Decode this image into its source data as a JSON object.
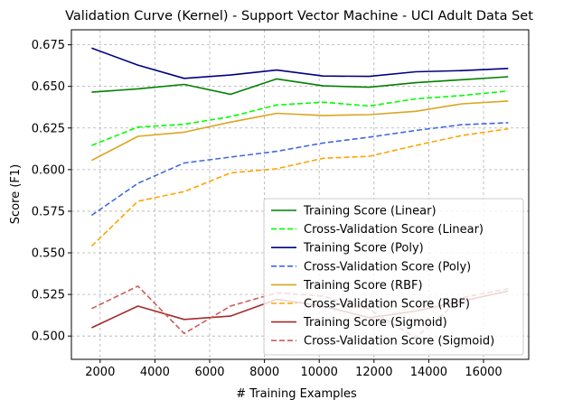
{
  "chart_data": {
    "type": "line",
    "title": "Validation Curve (Kernel) - Support Vector Machine - UCI Adult Data Set",
    "xlabel": "# Training Examples",
    "ylabel": "Score (F1)",
    "xlim": [
      950,
      17650
    ],
    "ylim": [
      0.486,
      0.684
    ],
    "grid": true,
    "legend_position": "lower-right",
    "x": [
      1690,
      3380,
      5070,
      6760,
      8450,
      10140,
      11830,
      13520,
      15210,
      16900
    ],
    "x_ticks": [
      2000,
      4000,
      6000,
      8000,
      10000,
      12000,
      14000,
      16000
    ],
    "x_tick_labels": [
      "2000",
      "4000",
      "6000",
      "8000",
      "10000",
      "12000",
      "14000",
      "16000"
    ],
    "y_ticks": [
      0.5,
      0.525,
      0.55,
      0.575,
      0.6,
      0.625,
      0.65,
      0.675
    ],
    "y_tick_labels": [
      "0.500",
      "0.525",
      "0.550",
      "0.575",
      "0.600",
      "0.625",
      "0.650",
      "0.675"
    ],
    "series": [
      {
        "name": "Training Score (Linear)",
        "color": "#008000",
        "dash": "solid",
        "values": [
          0.6465,
          0.6485,
          0.6512,
          0.6452,
          0.6545,
          0.6503,
          0.6495,
          0.6522,
          0.654,
          0.6558
        ]
      },
      {
        "name": "Cross-Validation Score (Linear)",
        "color": "#00ff00",
        "dash": "dashed",
        "values": [
          0.6145,
          0.6255,
          0.6272,
          0.6318,
          0.6388,
          0.6405,
          0.6382,
          0.6425,
          0.6445,
          0.6472
        ]
      },
      {
        "name": "Training Score (Poly)",
        "color": "#000080",
        "dash": "solid",
        "values": [
          0.673,
          0.6628,
          0.6548,
          0.6568,
          0.6598,
          0.6562,
          0.656,
          0.6588,
          0.6595,
          0.6608
        ]
      },
      {
        "name": "Cross-Validation Score (Poly)",
        "color": "#4169e1",
        "dash": "dashed",
        "values": [
          0.5725,
          0.5918,
          0.604,
          0.6075,
          0.611,
          0.616,
          0.6195,
          0.6235,
          0.627,
          0.6282
        ]
      },
      {
        "name": "Training Score (RBF)",
        "color": "#daa520",
        "dash": "solid",
        "values": [
          0.6055,
          0.62,
          0.6225,
          0.6285,
          0.6338,
          0.6325,
          0.633,
          0.635,
          0.6395,
          0.6412
        ]
      },
      {
        "name": "Cross-Validation Score (RBF)",
        "color": "#ffa500",
        "dash": "dashed",
        "values": [
          0.554,
          0.581,
          0.5868,
          0.598,
          0.6005,
          0.6068,
          0.608,
          0.6145,
          0.6205,
          0.6245
        ]
      },
      {
        "name": "Training Score (Sigmoid)",
        "color": "#a52a2a",
        "dash": "solid",
        "values": [
          0.505,
          0.518,
          0.51,
          0.512,
          0.522,
          0.518,
          0.511,
          0.515,
          0.521,
          0.527
        ]
      },
      {
        "name": "Cross-Validation Score (Sigmoid)",
        "color": "#cd5c5c",
        "dash": "dashed",
        "values": [
          0.5165,
          0.53,
          0.5015,
          0.518,
          0.526,
          0.524,
          0.516,
          0.499,
          0.523,
          0.5285
        ]
      }
    ]
  }
}
